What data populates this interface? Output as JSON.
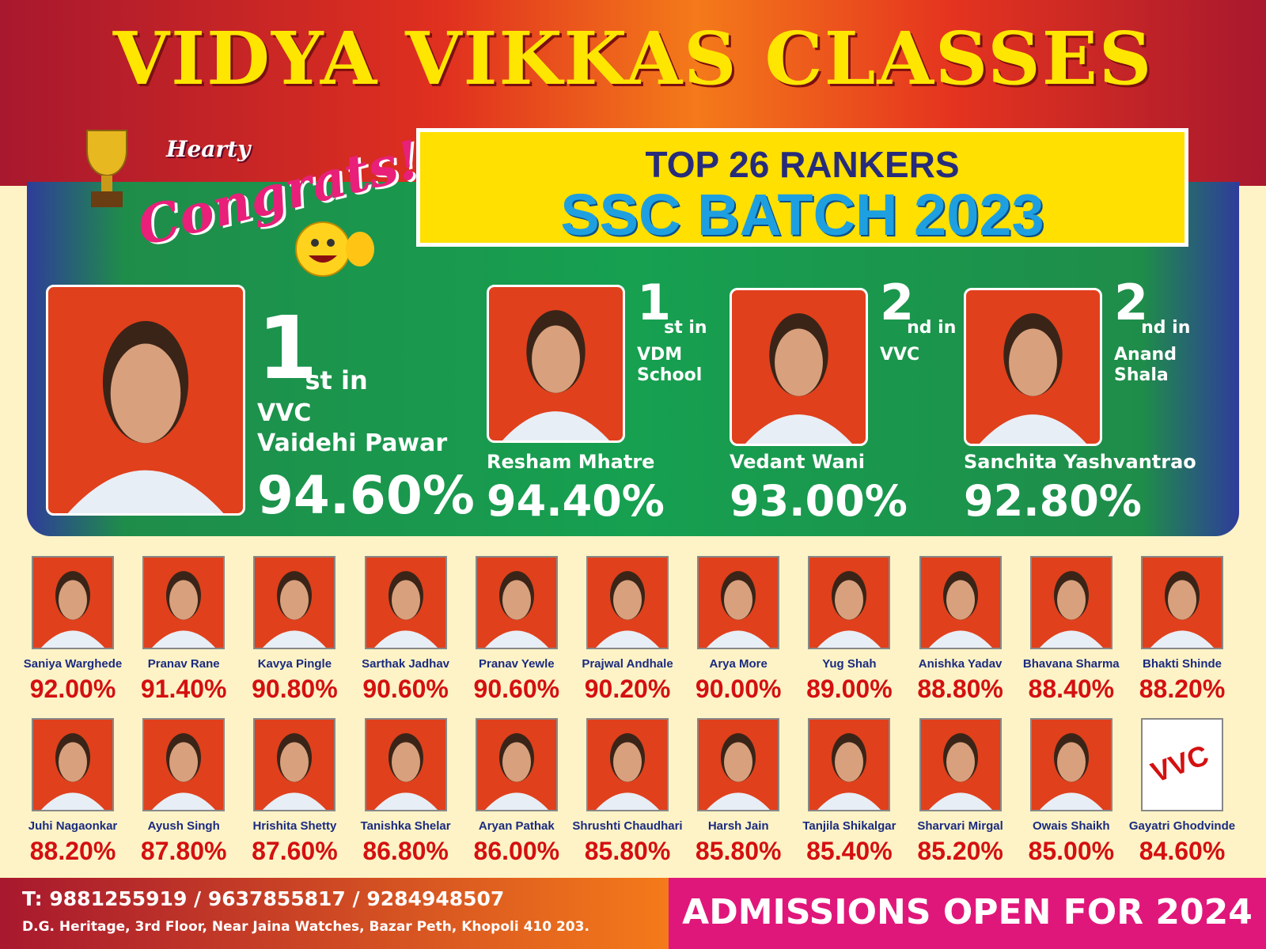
{
  "header": {
    "title": "VIDYA VIKKAS CLASSES"
  },
  "congrats": {
    "small": "Hearty",
    "big": "Congrats!"
  },
  "banner": {
    "line1": "TOP 26 RANKERS",
    "line2": "SSC BATCH 2023"
  },
  "toppers": [
    {
      "rank": "1",
      "suffix": "st in",
      "place": "VVC",
      "name": "Vaidehi Pawar",
      "percent": "94.60%"
    },
    {
      "rank": "1",
      "suffix": "st in",
      "place": "VDM School",
      "name": "Resham Mhatre",
      "percent": "94.40%"
    },
    {
      "rank": "2",
      "suffix": "nd in",
      "place": "VVC",
      "name": "Vedant Wani",
      "percent": "93.00%"
    },
    {
      "rank": "2",
      "suffix": "nd in",
      "place": "Anand Shala",
      "name": "Sanchita Yashvantrao",
      "percent": "92.80%"
    }
  ],
  "students": [
    {
      "name": "Saniya Warghede",
      "percent": "92.00%"
    },
    {
      "name": "Pranav Rane",
      "percent": "91.40%"
    },
    {
      "name": "Kavya Pingle",
      "percent": "90.80%"
    },
    {
      "name": "Sarthak Jadhav",
      "percent": "90.60%"
    },
    {
      "name": "Pranav Yewle",
      "percent": "90.60%"
    },
    {
      "name": "Prajwal Andhale",
      "percent": "90.20%"
    },
    {
      "name": "Arya More",
      "percent": "90.00%"
    },
    {
      "name": "Yug Shah",
      "percent": "89.00%"
    },
    {
      "name": "Anishka Yadav",
      "percent": "88.80%"
    },
    {
      "name": "Bhavana Sharma",
      "percent": "88.40%"
    },
    {
      "name": "Bhakti Shinde",
      "percent": "88.20%"
    },
    {
      "name": "Juhi Nagaonkar",
      "percent": "88.20%"
    },
    {
      "name": "Ayush Singh",
      "percent": "87.80%"
    },
    {
      "name": "Hrishita Shetty",
      "percent": "87.60%"
    },
    {
      "name": "Tanishka Shelar",
      "percent": "86.80%"
    },
    {
      "name": "Aryan Pathak",
      "percent": "86.00%"
    },
    {
      "name": "Shrushti Chaudhari",
      "percent": "85.80%"
    },
    {
      "name": "Harsh Jain",
      "percent": "85.80%"
    },
    {
      "name": "Tanjila Shikalgar",
      "percent": "85.40%"
    },
    {
      "name": "Sharvari Mirgal",
      "percent": "85.20%"
    },
    {
      "name": "Owais Shaikh",
      "percent": "85.00%"
    },
    {
      "name": "Gayatri Ghodvinde",
      "percent": "84.60%",
      "logo": "VVC"
    }
  ],
  "footer": {
    "phones": "T: 9881255919 / 9637855817 / 9284948507",
    "address": "D.G. Heritage, 3rd Floor, Near Jaina Watches, Bazar Peth, Khopoli 410 203.",
    "admissions": "ADMISSIONS OPEN FOR 2024"
  }
}
